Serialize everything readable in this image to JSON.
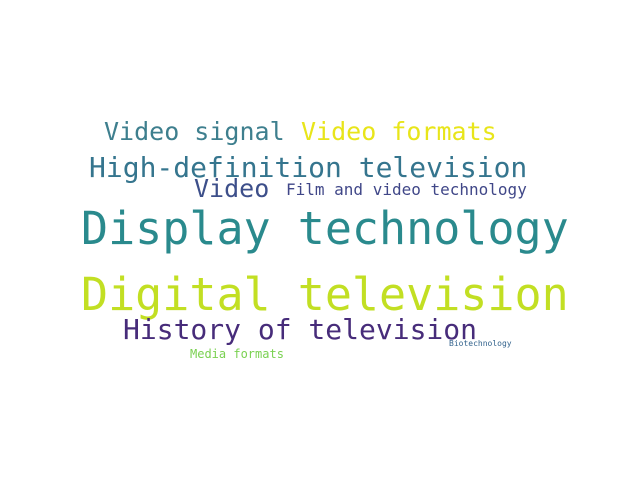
{
  "words": [
    {
      "text": "Digital television",
      "color": "#c2df23"
    },
    {
      "text": "Display technology",
      "color": "#2a8a8d"
    },
    {
      "text": "High-definition television",
      "color": "#35758e"
    },
    {
      "text": "History of television",
      "color": "#472c7a"
    },
    {
      "text": "Video formats",
      "color": "#e8e51a"
    },
    {
      "text": "Video signal",
      "color": "#3e7f8e"
    },
    {
      "text": "Video",
      "color": "#3d4f8a"
    },
    {
      "text": "Film and video technology",
      "color": "#404788"
    },
    {
      "text": "Media formats",
      "color": "#7ad151"
    },
    {
      "text": "Biotechnology",
      "color": "#33638d"
    }
  ]
}
